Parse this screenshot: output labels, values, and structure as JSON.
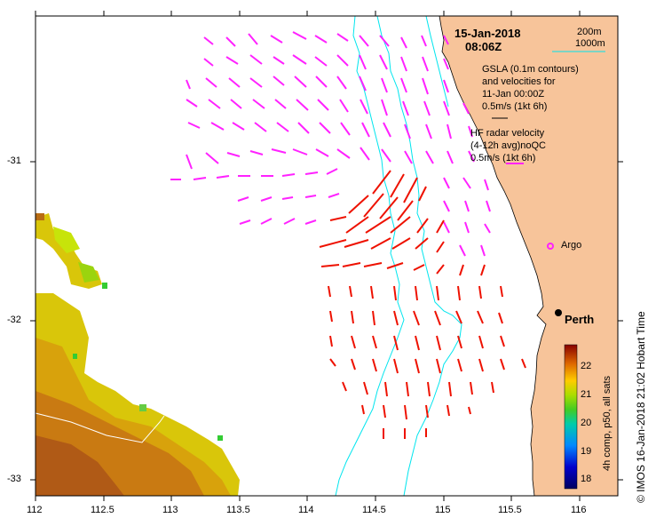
{
  "map": {
    "date": "15-Jan-2018",
    "time": "08:06Z",
    "contours": {
      "label_a": "200m",
      "label_b": "1000m"
    },
    "gsla_line1": "GSLA (0.1m contours)",
    "gsla_line2": "and velocities for",
    "gsla_line3": "11-Jan 00:00Z",
    "gsla_scale": "0.5m/s (1kt 6h)",
    "hf_line1": "HF radar velocity",
    "hf_line2": "(4-12h avg)noQC",
    "hf_scale": "0.5m/s (1kt 6h)",
    "argo_label": "Argo",
    "city_label": "Perth",
    "x_ticks": [
      "112",
      "112.5",
      "113",
      "113.5",
      "114",
      "114.5",
      "115",
      "115.5",
      "116"
    ],
    "y_ticks": [
      "-31",
      "-32",
      "-33"
    ],
    "colorbar": {
      "title": "4h comp, p50, all sats",
      "ticks": [
        "22",
        "21",
        "20",
        "19",
        "18"
      ]
    },
    "credit": "© IMOS 16-Jan-2018 21:02 Hobart Time",
    "colors": {
      "land": "#f7c49a",
      "magenta": "#ff22ff",
      "red": "#ee1100",
      "contour": "#00e5ee"
    }
  }
}
